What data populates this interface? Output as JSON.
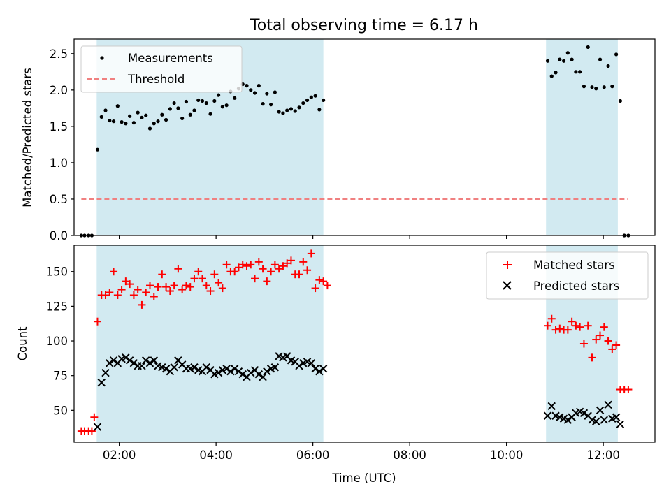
{
  "chart_data": [
    {
      "type": "scatter",
      "title": "Total observing time = 6.17 h",
      "ylabel": "Matched/Predicted stars",
      "xlabel": "",
      "xlim": [
        "01:04",
        "13:04"
      ],
      "ylim": [
        0,
        2.7
      ],
      "xticks": [
        "02:00",
        "04:00",
        "06:00",
        "08:00",
        "10:00",
        "12:00"
      ],
      "show_xtick_labels": false,
      "yticks": [
        "0.0",
        "0.5",
        "1.0",
        "1.5",
        "2.0",
        "2.5"
      ],
      "ytick_values": [
        0,
        0.5,
        1.0,
        1.5,
        2.0,
        2.5
      ],
      "legend_position": "top-left",
      "shaded_spans": [
        [
          "01:32",
          "06:13"
        ],
        [
          "10:49",
          "12:18"
        ]
      ],
      "shade_color": "#add8e6",
      "series": [
        {
          "name": "Measurements",
          "kind": "points",
          "color": "#000000",
          "x": [
            "01:13",
            "01:17",
            "01:22",
            "01:26",
            "01:33",
            "01:38",
            "01:43",
            "01:48",
            "01:53",
            "01:58",
            "02:03",
            "02:08",
            "02:13",
            "02:18",
            "02:23",
            "02:28",
            "02:33",
            "02:38",
            "02:43",
            "02:48",
            "02:53",
            "02:58",
            "03:03",
            "03:08",
            "03:13",
            "03:18",
            "03:23",
            "03:28",
            "03:33",
            "03:38",
            "03:43",
            "03:48",
            "03:53",
            "03:58",
            "04:03",
            "04:08",
            "04:13",
            "04:18",
            "04:23",
            "04:28",
            "04:33",
            "04:38",
            "04:43",
            "04:48",
            "04:53",
            "04:58",
            "05:03",
            "05:08",
            "05:13",
            "05:18",
            "05:23",
            "05:28",
            "05:33",
            "05:38",
            "05:43",
            "05:48",
            "05:53",
            "05:58",
            "06:03",
            "06:08",
            "06:13",
            "10:51",
            "10:56",
            "11:01",
            "11:06",
            "11:11",
            "11:16",
            "11:21",
            "11:26",
            "11:31",
            "11:36",
            "11:41",
            "11:46",
            "11:51",
            "11:56",
            "12:01",
            "12:06",
            "12:11",
            "12:16",
            "12:21",
            "12:26",
            "12:31"
          ],
          "y": [
            0,
            0,
            0,
            0,
            1.18,
            1.63,
            1.72,
            1.58,
            1.57,
            1.78,
            1.56,
            1.54,
            1.64,
            1.55,
            1.69,
            1.62,
            1.65,
            1.47,
            1.54,
            1.57,
            1.66,
            1.59,
            1.74,
            1.82,
            1.75,
            1.61,
            1.84,
            1.66,
            1.72,
            1.86,
            1.85,
            1.82,
            1.67,
            1.85,
            1.93,
            1.77,
            1.79,
            1.98,
            1.89,
            2.02,
            2.08,
            2.06,
            2.0,
            1.96,
            2.06,
            1.81,
            1.95,
            1.8,
            1.97,
            1.7,
            1.68,
            1.72,
            1.74,
            1.71,
            1.76,
            1.82,
            1.86,
            1.9,
            1.92,
            1.73,
            1.86,
            2.4,
            2.19,
            2.24,
            2.42,
            2.4,
            2.51,
            2.42,
            2.25,
            2.25,
            2.05,
            2.59,
            2.04,
            2.02,
            2.42,
            2.04,
            2.33,
            2.05,
            2.49,
            1.85,
            0,
            0
          ]
        },
        {
          "name": "Threshold",
          "kind": "dashed-line",
          "color": "#f08080",
          "x": [
            "01:13",
            "12:31"
          ],
          "y": [
            0.5,
            0.5
          ]
        }
      ]
    },
    {
      "type": "scatter",
      "title": "",
      "ylabel": "Count",
      "xlabel": "Time (UTC)",
      "xlim": [
        "01:04",
        "13:04"
      ],
      "ylim": [
        27,
        169
      ],
      "xticks": [
        "02:00",
        "04:00",
        "06:00",
        "08:00",
        "10:00",
        "12:00"
      ],
      "yticks": [
        "50",
        "75",
        "100",
        "125",
        "150"
      ],
      "ytick_values": [
        50,
        75,
        100,
        125,
        150
      ],
      "legend_position": "top-right",
      "shaded_spans": [
        [
          "01:32",
          "06:13"
        ],
        [
          "10:49",
          "12:18"
        ]
      ],
      "shade_color": "#add8e6",
      "series": [
        {
          "name": "Matched stars",
          "marker": "plus",
          "color": "#ff0000",
          "x": [
            "01:13",
            "01:17",
            "01:22",
            "01:26",
            "01:29",
            "01:33",
            "01:38",
            "01:43",
            "01:48",
            "01:53",
            "01:58",
            "02:03",
            "02:08",
            "02:13",
            "02:18",
            "02:23",
            "02:28",
            "02:33",
            "02:38",
            "02:43",
            "02:48",
            "02:53",
            "02:58",
            "03:03",
            "03:08",
            "03:13",
            "03:18",
            "03:23",
            "03:28",
            "03:33",
            "03:38",
            "03:43",
            "03:48",
            "03:53",
            "03:58",
            "04:03",
            "04:08",
            "04:13",
            "04:18",
            "04:23",
            "04:28",
            "04:33",
            "04:38",
            "04:43",
            "04:48",
            "04:53",
            "04:58",
            "05:03",
            "05:08",
            "05:13",
            "05:18",
            "05:23",
            "05:28",
            "05:33",
            "05:38",
            "05:43",
            "05:48",
            "05:53",
            "05:58",
            "06:03",
            "06:08",
            "06:13",
            "06:18",
            "10:51",
            "10:56",
            "11:01",
            "11:06",
            "11:11",
            "11:16",
            "11:21",
            "11:26",
            "11:31",
            "11:36",
            "11:41",
            "11:46",
            "11:51",
            "11:56",
            "12:01",
            "12:06",
            "12:11",
            "12:16",
            "12:21",
            "12:26",
            "12:31"
          ],
          "y": [
            35,
            35,
            35,
            35,
            45,
            114,
            133,
            133,
            135,
            150,
            133,
            137,
            143,
            141,
            133,
            137,
            126,
            135,
            140,
            132,
            139,
            148,
            139,
            136,
            140,
            152,
            137,
            140,
            139,
            145,
            150,
            145,
            140,
            136,
            148,
            142,
            138,
            155,
            150,
            150,
            153,
            155,
            154,
            155,
            145,
            157,
            152,
            143,
            150,
            155,
            152,
            154,
            156,
            158,
            148,
            148,
            157,
            151,
            163,
            138,
            144,
            143,
            140,
            111,
            116,
            108,
            109,
            108,
            108,
            114,
            111,
            110,
            98,
            111,
            88,
            101,
            104,
            110,
            100,
            94,
            97,
            65,
            65,
            65
          ]
        },
        {
          "name": "Predicted stars",
          "marker": "x",
          "color": "#000000",
          "x": [
            "01:33",
            "01:38",
            "01:43",
            "01:48",
            "01:53",
            "01:58",
            "02:03",
            "02:08",
            "02:13",
            "02:18",
            "02:23",
            "02:28",
            "02:33",
            "02:38",
            "02:43",
            "02:48",
            "02:53",
            "02:58",
            "03:03",
            "03:08",
            "03:13",
            "03:18",
            "03:23",
            "03:28",
            "03:33",
            "03:38",
            "03:43",
            "03:48",
            "03:53",
            "03:58",
            "04:03",
            "04:08",
            "04:13",
            "04:18",
            "04:23",
            "04:28",
            "04:33",
            "04:38",
            "04:43",
            "04:48",
            "04:53",
            "04:58",
            "05:03",
            "05:08",
            "05:13",
            "05:18",
            "05:23",
            "05:28",
            "05:33",
            "05:38",
            "05:43",
            "05:48",
            "05:53",
            "05:58",
            "06:03",
            "06:08",
            "06:13",
            "10:51",
            "10:56",
            "11:01",
            "11:06",
            "11:11",
            "11:16",
            "11:21",
            "11:26",
            "11:31",
            "11:36",
            "11:41",
            "11:46",
            "11:51",
            "11:56",
            "12:01",
            "12:06",
            "12:11",
            "12:16",
            "12:21"
          ],
          "y": [
            38,
            70,
            77,
            84,
            86,
            84,
            87,
            88,
            86,
            84,
            82,
            82,
            86,
            84,
            86,
            82,
            81,
            80,
            78,
            81,
            86,
            83,
            80,
            80,
            81,
            79,
            78,
            81,
            79,
            76,
            77,
            79,
            80,
            78,
            80,
            78,
            76,
            74,
            77,
            79,
            76,
            74,
            78,
            80,
            81,
            89,
            88,
            89,
            86,
            85,
            82,
            84,
            85,
            84,
            80,
            78,
            80,
            46,
            53,
            46,
            45,
            44,
            43,
            45,
            48,
            49,
            48,
            46,
            43,
            42,
            50,
            43,
            54,
            44,
            45,
            40
          ]
        }
      ]
    }
  ]
}
